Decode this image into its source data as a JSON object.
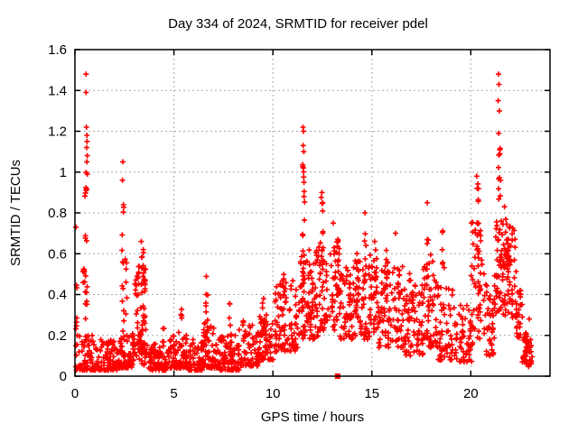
{
  "title": "Day 334 of 2024, SRMTID for receiver pdel",
  "x_axis": {
    "label": "GPS time / hours"
  },
  "y_axis": {
    "label": "SRMTID / TECUs"
  },
  "chart_data": {
    "type": "scatter",
    "title": "Day 334 of 2024, SRMTID for receiver pdel",
    "xlabel": "GPS time / hours",
    "ylabel": "SRMTID / TECUs",
    "xlim": [
      0,
      24
    ],
    "ylim": [
      0,
      1.6
    ],
    "xticks": [
      0,
      5,
      10,
      15,
      20
    ],
    "xtick_labels": [
      "0",
      "5",
      "10",
      "15",
      "20"
    ],
    "yticks": [
      0,
      0.2,
      0.4,
      0.6,
      0.8,
      1.0,
      1.2,
      1.4,
      1.6
    ],
    "ytick_labels": [
      "0",
      "0.2",
      "0.4",
      "0.6",
      "0.8",
      "1",
      "1.2",
      "1.4",
      "1.6"
    ],
    "grid": true,
    "grid_color": "#a8a8a8",
    "marker": "plus",
    "marker_color": "#ff0000",
    "series": [
      {
        "name": "SRMTID plus-markers",
        "comment": "Dense scatter ~2000 pts. bands=[h0,h1,count,ymin,ymax,lowbias]; streaks=[hCenter,hHalfWidth,count,ymin,ymax]; peak_points=exact readable extremes [h,TECU].",
        "bands": [
          [
            0.05,
            1.0,
            75,
            0.03,
            0.2,
            2.0
          ],
          [
            1.0,
            2.2,
            95,
            0.03,
            0.18,
            2.0
          ],
          [
            2.2,
            3.0,
            70,
            0.04,
            0.22,
            2.0
          ],
          [
            3.0,
            3.6,
            50,
            0.18,
            0.55,
            1.0
          ],
          [
            3.0,
            3.6,
            35,
            0.05,
            0.18,
            1.0
          ],
          [
            3.6,
            4.7,
            85,
            0.03,
            0.16,
            2.0
          ],
          [
            4.7,
            5.7,
            85,
            0.04,
            0.22,
            2.0
          ],
          [
            5.7,
            6.5,
            70,
            0.03,
            0.18,
            2.0
          ],
          [
            6.5,
            7.3,
            70,
            0.04,
            0.28,
            2.0
          ],
          [
            7.3,
            8.3,
            85,
            0.03,
            0.2,
            2.0
          ],
          [
            8.3,
            9.3,
            70,
            0.05,
            0.26,
            2.0
          ],
          [
            9.3,
            10.1,
            60,
            0.08,
            0.3,
            1.5
          ],
          [
            10.1,
            11.3,
            95,
            0.12,
            0.48,
            1.5
          ],
          [
            11.3,
            12.3,
            95,
            0.18,
            0.62,
            1.3
          ],
          [
            12.3,
            13.3,
            75,
            0.22,
            0.68,
            1.3
          ],
          [
            13.3,
            14.3,
            85,
            0.18,
            0.55,
            1.3
          ],
          [
            14.3,
            15.3,
            75,
            0.18,
            0.6,
            1.3
          ],
          [
            15.3,
            16.6,
            95,
            0.14,
            0.55,
            1.5
          ],
          [
            16.6,
            17.6,
            75,
            0.1,
            0.45,
            1.5
          ],
          [
            17.6,
            18.3,
            55,
            0.14,
            0.6,
            1.4
          ],
          [
            18.3,
            19.3,
            65,
            0.08,
            0.45,
            1.6
          ],
          [
            19.3,
            20.1,
            55,
            0.07,
            0.35,
            1.6
          ],
          [
            20.1,
            20.7,
            45,
            0.18,
            0.72,
            1.2
          ],
          [
            20.7,
            21.2,
            40,
            0.1,
            0.45,
            1.4
          ],
          [
            21.2,
            21.7,
            55,
            0.3,
            0.8,
            1.1
          ],
          [
            21.7,
            22.3,
            55,
            0.28,
            0.78,
            1.2
          ],
          [
            22.3,
            22.6,
            25,
            0.18,
            0.42,
            1.3
          ],
          [
            22.6,
            23.1,
            40,
            0.04,
            0.2,
            1.2
          ]
        ],
        "streaks": [
          [
            0.08,
            0.05,
            6,
            0.2,
            0.5
          ],
          [
            0.45,
            0.05,
            8,
            0.35,
            0.55
          ],
          [
            0.56,
            0.06,
            16,
            0.25,
            1.0
          ],
          [
            2.42,
            0.05,
            12,
            0.2,
            0.88
          ],
          [
            2.58,
            0.05,
            6,
            0.3,
            0.62
          ],
          [
            3.4,
            0.06,
            8,
            0.4,
            0.64
          ],
          [
            4.45,
            0.05,
            5,
            0.15,
            0.33
          ],
          [
            5.4,
            0.05,
            6,
            0.15,
            0.33
          ],
          [
            6.65,
            0.06,
            8,
            0.2,
            0.5
          ],
          [
            7.85,
            0.06,
            6,
            0.15,
            0.36
          ],
          [
            8.55,
            0.05,
            5,
            0.15,
            0.3
          ],
          [
            9.5,
            0.06,
            7,
            0.2,
            0.42
          ],
          [
            10.55,
            0.06,
            6,
            0.25,
            0.55
          ],
          [
            11.55,
            0.06,
            16,
            0.45,
            1.05
          ],
          [
            12.5,
            0.06,
            10,
            0.45,
            0.9
          ],
          [
            13.3,
            0.06,
            9,
            0.4,
            0.75
          ],
          [
            14.2,
            0.06,
            7,
            0.4,
            0.65
          ],
          [
            14.65,
            0.06,
            9,
            0.35,
            0.78
          ],
          [
            15.2,
            0.06,
            7,
            0.35,
            0.66
          ],
          [
            15.75,
            0.06,
            7,
            0.3,
            0.62
          ],
          [
            16.35,
            0.06,
            7,
            0.3,
            0.58
          ],
          [
            16.95,
            0.06,
            6,
            0.25,
            0.52
          ],
          [
            17.85,
            0.06,
            8,
            0.28,
            0.7
          ],
          [
            18.6,
            0.06,
            8,
            0.3,
            0.73
          ],
          [
            20.05,
            0.05,
            6,
            0.45,
            0.8
          ],
          [
            20.35,
            0.06,
            8,
            0.5,
            0.99
          ],
          [
            21.45,
            0.06,
            10,
            0.8,
            1.12
          ],
          [
            21.9,
            0.07,
            9,
            0.4,
            0.72
          ],
          [
            22.8,
            0.07,
            10,
            0.05,
            0.22
          ]
        ],
        "peak_points": [
          [
            0.05,
            0.73
          ],
          [
            0.56,
            1.48
          ],
          [
            0.56,
            1.39
          ],
          [
            0.58,
            1.22
          ],
          [
            0.6,
            1.18
          ],
          [
            0.61,
            1.15
          ],
          [
            0.59,
            1.12
          ],
          [
            0.62,
            1.08
          ],
          [
            0.6,
            1.05
          ],
          [
            0.63,
            0.99
          ],
          [
            0.57,
            0.91
          ],
          [
            2.42,
            1.05
          ],
          [
            2.4,
            0.96
          ],
          [
            2.45,
            0.84
          ],
          [
            3.35,
            0.66
          ],
          [
            3.45,
            0.62
          ],
          [
            11.52,
            1.22
          ],
          [
            11.55,
            1.2
          ],
          [
            11.53,
            1.13
          ],
          [
            11.56,
            1.1
          ],
          [
            11.54,
            1.02
          ],
          [
            11.57,
            0.95
          ],
          [
            12.48,
            0.9
          ],
          [
            12.52,
            0.85
          ],
          [
            13.05,
            0.75
          ],
          [
            14.65,
            0.8
          ],
          [
            16.2,
            0.7
          ],
          [
            17.8,
            0.85
          ],
          [
            20.3,
            0.98
          ],
          [
            20.32,
            0.92
          ],
          [
            21.4,
            1.48
          ],
          [
            21.42,
            1.43
          ],
          [
            21.38,
            1.35
          ],
          [
            21.44,
            1.3
          ],
          [
            21.41,
            1.19
          ],
          [
            21.46,
            1.11
          ],
          [
            21.7,
            0.83
          ],
          [
            22.95,
            0.28
          ]
        ]
      },
      {
        "name": "square-marker",
        "marker": "filled-square",
        "points": [
          [
            13.27,
            0.0
          ]
        ]
      }
    ]
  }
}
